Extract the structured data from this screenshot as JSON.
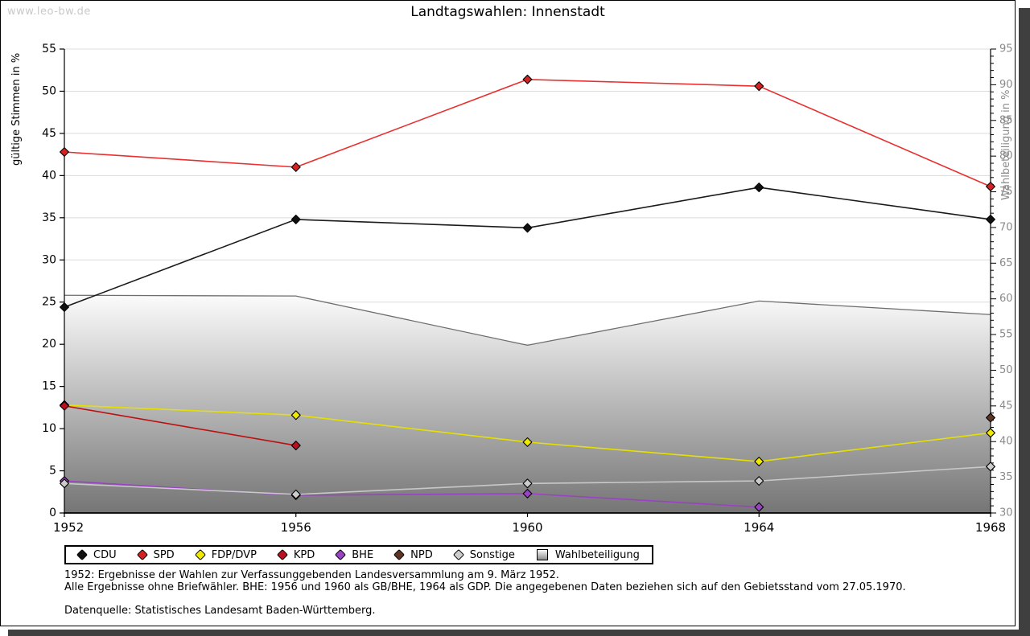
{
  "watermark": "www.leo-bw.de",
  "title": "Landtagswahlen: Innenstadt",
  "axes": {
    "left_label": "gültige Stimmen in %",
    "right_label": "Wahlbeteiligung in %"
  },
  "legend": {
    "items": [
      {
        "label": "CDU",
        "marker": "diamond",
        "color": "#111111"
      },
      {
        "label": "SPD",
        "marker": "diamond",
        "color": "#d42121"
      },
      {
        "label": "FDP/DVP",
        "marker": "diamond",
        "color": "#f0e800"
      },
      {
        "label": "KPD",
        "marker": "diamond",
        "color": "#bb1020"
      },
      {
        "label": "BHE",
        "marker": "diamond",
        "color": "#9a42c4"
      },
      {
        "label": "NPD",
        "marker": "diamond",
        "color": "#5f3424"
      },
      {
        "label": "Sonstige",
        "marker": "diamond",
        "color": "#cccccc"
      },
      {
        "label": "Wahlbeteiligung",
        "marker": "square",
        "color": "#aaaaaa"
      }
    ]
  },
  "footnotes": {
    "line1": "1952: Ergebnisse der Wahlen zur Verfassunggebenden Landesversammlung am 9. März 1952.",
    "line2": "Alle Ergebnisse ohne Briefwähler. BHE: 1956 und 1960 als GB/BHE, 1964 als GDP. Die angegebenen Daten beziehen sich auf den Gebietsstand vom 27.05.1970.",
    "source": "Datenquelle: Statistisches Landesamt Baden-Württemberg."
  },
  "chart_data": {
    "type": "line",
    "title": "Landtagswahlen: Innenstadt",
    "x": [
      1952,
      1956,
      1960,
      1964,
      1968
    ],
    "left_axis": {
      "label": "gültige Stimmen in %",
      "min": 0,
      "max": 55,
      "major_tick": 5
    },
    "right_axis": {
      "label": "Wahlbeteiligung in %",
      "min": 30,
      "max": 95,
      "major_tick": 5,
      "minor_tick": 1
    },
    "grid": true,
    "legend_position": "bottom",
    "series": [
      {
        "name": "Wahlbeteiligung",
        "type": "area",
        "axis": "right",
        "color": "#6e6e6e",
        "values": [
          60.5,
          60.4,
          53.5,
          59.7,
          57.8
        ]
      },
      {
        "name": "CDU",
        "type": "line",
        "axis": "left",
        "color": "#1a1a1a",
        "marker_color": "#111111",
        "values": [
          24.4,
          34.8,
          33.8,
          38.6,
          34.8
        ]
      },
      {
        "name": "SPD",
        "type": "line",
        "axis": "left",
        "color": "#e83030",
        "marker_color": "#d42121",
        "values": [
          42.8,
          41.0,
          51.4,
          50.6,
          38.7
        ]
      },
      {
        "name": "FDP/DVP",
        "type": "line",
        "axis": "left",
        "color": "#e6e000",
        "marker_color": "#f0e800",
        "values": [
          12.8,
          11.6,
          8.4,
          6.1,
          9.5
        ]
      },
      {
        "name": "KPD",
        "type": "line",
        "axis": "left",
        "color": "#bb1111",
        "marker_color": "#bb1020",
        "values": [
          12.7,
          8.0,
          null,
          null,
          null
        ]
      },
      {
        "name": "BHE",
        "type": "line",
        "axis": "left",
        "color": "#9a42c4",
        "marker_color": "#9a42c4",
        "values": [
          3.8,
          2.1,
          2.3,
          0.7,
          null
        ]
      },
      {
        "name": "NPD",
        "type": "line",
        "axis": "left",
        "color": "#5f3424",
        "marker_color": "#5f3424",
        "values": [
          null,
          null,
          null,
          null,
          11.3
        ]
      },
      {
        "name": "Sonstige",
        "type": "line",
        "axis": "left",
        "color": "#c8c8c8",
        "marker_color": "#cccccc",
        "values": [
          3.5,
          2.2,
          3.5,
          3.8,
          5.5
        ]
      }
    ]
  }
}
